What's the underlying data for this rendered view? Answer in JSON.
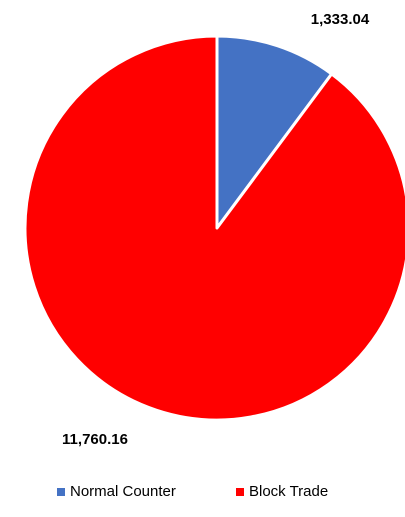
{
  "chart_data": {
    "type": "pie",
    "categories": [
      "Normal Counter",
      "Block Trade"
    ],
    "values": [
      1333.04,
      11760.16
    ],
    "value_labels": [
      "1,333.04",
      "11,760.16"
    ],
    "colors": [
      "#4472c4",
      "#ff0000"
    ],
    "legend": "bottom"
  }
}
